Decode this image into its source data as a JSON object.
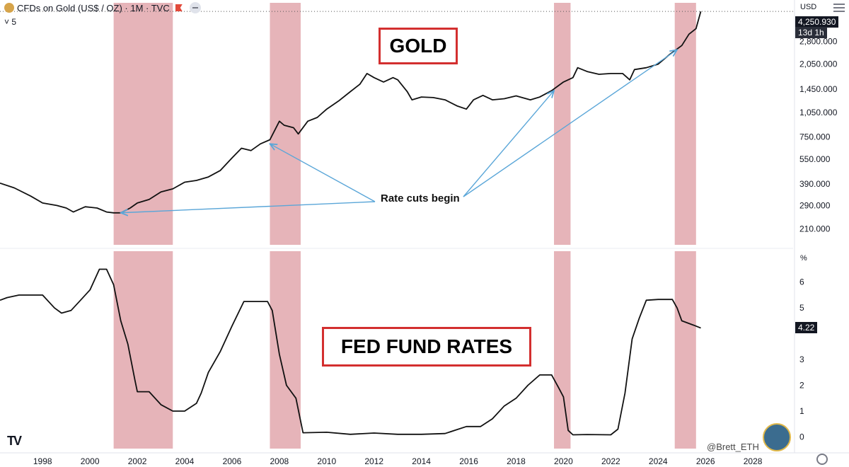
{
  "header": {
    "symbol": "CFDs on Gold (US$ / OZ) · 1M · TVC",
    "sub": "5"
  },
  "price_axis": {
    "unit": "USD",
    "pct_unit": "%",
    "last_gold": "4,250.930",
    "countdown": "13d 1h",
    "last_rate": "4.22"
  },
  "labels": {
    "gold": "GOLD",
    "fed": "FED FUND RATES",
    "rate_cuts": "Rate cuts begin",
    "watermark": "@Brett_ETH",
    "tv_logo": "TV"
  },
  "icons": [
    "gold-coin-icon",
    "flag-icon",
    "collapse-icon",
    "menu-icon",
    "tradingview-logo-icon",
    "avatar-icon",
    "settings-icon"
  ],
  "colors": {
    "shade": "#e2a7ad",
    "line": "#111111",
    "arrow": "#5aa6d8",
    "box": "#d32f2f"
  },
  "chart_data": [
    {
      "type": "line",
      "title": "CFDs on Gold (US$ / OZ) · 1M · TVC",
      "label": "GOLD",
      "xlabel": "",
      "ylabel": "USD",
      "scale": "log",
      "xlim": [
        1996.2,
        2029.7
      ],
      "ylim": [
        165,
        4600
      ],
      "yticks": [
        "4,250.930",
        "2,800.000",
        "2,050.000",
        "1,450.000",
        "1,050.000",
        "750.000",
        "550.000",
        "390.000",
        "290.000",
        "210.000"
      ],
      "ytick_values": [
        4250.93,
        2800,
        2050,
        1450,
        1050,
        750,
        550,
        390,
        290,
        210
      ],
      "x": [
        1996.2,
        1996.8,
        1997.5,
        1998.0,
        1998.6,
        1999.0,
        1999.3,
        1999.8,
        2000.3,
        2000.7,
        2001.0,
        2001.3,
        2001.7,
        2002.0,
        2002.5,
        2003.0,
        2003.5,
        2004.0,
        2004.5,
        2005.0,
        2005.5,
        2006.0,
        2006.4,
        2006.8,
        2007.2,
        2007.6,
        2008.0,
        2008.2,
        2008.6,
        2008.8,
        2009.2,
        2009.6,
        2010.0,
        2010.5,
        2011.0,
        2011.4,
        2011.7,
        2012.0,
        2012.4,
        2012.8,
        2013.0,
        2013.4,
        2013.6,
        2014.0,
        2014.5,
        2015.0,
        2015.5,
        2015.9,
        2016.2,
        2016.6,
        2017.0,
        2017.5,
        2018.0,
        2018.6,
        2019.0,
        2019.5,
        2020.0,
        2020.4,
        2020.6,
        2021.0,
        2021.5,
        2022.0,
        2022.5,
        2022.8,
        2023.0,
        2023.5,
        2024.0,
        2024.5,
        2025.0,
        2025.3,
        2025.6,
        2025.8
      ],
      "values": [
        395,
        370,
        330,
        300,
        290,
        280,
        265,
        285,
        280,
        265,
        262,
        262,
        280,
        300,
        315,
        350,
        365,
        400,
        410,
        430,
        470,
        560,
        640,
        620,
        680,
        720,
        930,
        880,
        850,
        780,
        930,
        980,
        1100,
        1230,
        1400,
        1550,
        1800,
        1700,
        1600,
        1700,
        1650,
        1400,
        1250,
        1300,
        1290,
        1250,
        1150,
        1100,
        1250,
        1330,
        1250,
        1270,
        1320,
        1250,
        1300,
        1420,
        1600,
        1700,
        1950,
        1850,
        1780,
        1800,
        1800,
        1650,
        1900,
        1950,
        2050,
        2350,
        2650,
        3100,
        3350,
        4250.93
      ]
    },
    {
      "type": "line",
      "label": "FED FUND RATES",
      "xlabel": "",
      "ylabel": "%",
      "xlim": [
        1996.2,
        2029.7
      ],
      "ylim": [
        -0.4,
        7.2
      ],
      "yticks": [
        "0",
        "1",
        "2",
        "3",
        "4",
        "5",
        "6"
      ],
      "ytick_values": [
        0,
        1,
        2,
        3,
        4,
        5,
        6
      ],
      "x": [
        1996.2,
        1996.5,
        1997.0,
        1997.5,
        1998.0,
        1998.5,
        1998.8,
        1999.2,
        1999.6,
        2000.0,
        2000.4,
        2000.7,
        2001.0,
        2001.3,
        2001.6,
        2001.9,
        2002.0,
        2002.5,
        2003.0,
        2003.5,
        2004.0,
        2004.5,
        2004.7,
        2005.0,
        2005.5,
        2006.0,
        2006.5,
        2007.0,
        2007.5,
        2007.7,
        2008.0,
        2008.3,
        2008.7,
        2008.9,
        2009.0,
        2010.0,
        2011.0,
        2012.0,
        2013.0,
        2014.0,
        2015.0,
        2015.9,
        2016.5,
        2017.0,
        2017.5,
        2018.0,
        2018.5,
        2019.0,
        2019.5,
        2019.8,
        2020.0,
        2020.2,
        2020.4,
        2021.0,
        2022.0,
        2022.3,
        2022.6,
        2022.9,
        2023.2,
        2023.5,
        2024.0,
        2024.6,
        2024.8,
        2025.0,
        2025.5,
        2025.8
      ],
      "values": [
        5.3,
        5.4,
        5.5,
        5.5,
        5.5,
        5.0,
        4.8,
        4.9,
        5.3,
        5.7,
        6.5,
        6.5,
        5.9,
        4.5,
        3.6,
        2.2,
        1.75,
        1.75,
        1.25,
        1.0,
        1.0,
        1.3,
        1.7,
        2.5,
        3.3,
        4.3,
        5.25,
        5.25,
        5.25,
        4.9,
        3.2,
        2.0,
        1.5,
        0.6,
        0.16,
        0.18,
        0.1,
        0.15,
        0.1,
        0.1,
        0.13,
        0.4,
        0.4,
        0.7,
        1.2,
        1.5,
        2.0,
        2.4,
        2.4,
        1.9,
        1.55,
        0.25,
        0.08,
        0.09,
        0.08,
        0.3,
        1.7,
        3.8,
        4.6,
        5.3,
        5.33,
        5.33,
        5.0,
        4.5,
        4.33,
        4.22
      ]
    }
  ],
  "x_axis": {
    "ticks": [
      "1998",
      "2000",
      "2002",
      "2004",
      "2006",
      "2008",
      "2010",
      "2012",
      "2014",
      "2016",
      "2018",
      "2020",
      "2022",
      "2024",
      "2026",
      "2028"
    ],
    "tick_values": [
      1998,
      2000,
      2002,
      2004,
      2006,
      2008,
      2010,
      2012,
      2014,
      2016,
      2018,
      2020,
      2022,
      2024,
      2026,
      2028
    ]
  },
  "shaded_periods": [
    [
      2001.0,
      2003.5
    ],
    [
      2007.6,
      2008.9
    ],
    [
      2019.6,
      2020.3
    ],
    [
      2024.7,
      2025.6
    ]
  ],
  "rate_cut_arrows_to": [
    [
      2001.3,
      262
    ],
    [
      2007.6,
      680
    ],
    [
      2019.6,
      1420
    ],
    [
      2024.8,
      2500
    ]
  ]
}
